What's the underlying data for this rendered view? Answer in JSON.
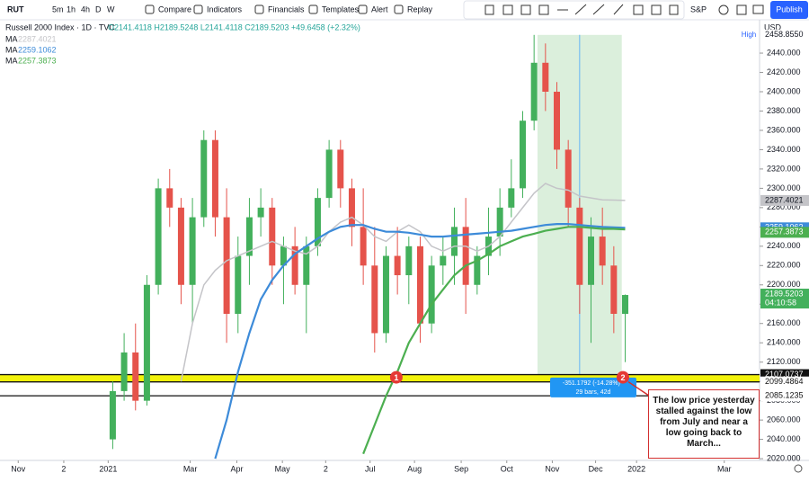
{
  "toolbar": {
    "symbol": "RUT",
    "intervals": [
      "5m",
      "1h",
      "4h",
      "D",
      "W"
    ],
    "buttons": [
      "Compare",
      "Indicators",
      "Financials",
      "Templates",
      "Alert",
      "Replay"
    ],
    "exchange": "S&P",
    "publish": "Publish"
  },
  "legend": {
    "title": "Russell 2000 Index · 1D · TVC",
    "ohlc": "O2141.4118 H2189.5248 L2141.4118 C2189.5203 +49.6458 (+2.32%)"
  },
  "chart_data": {
    "type": "candlestick",
    "currency": "USD",
    "up_color": "#43b05c",
    "down_color": "#e5534b",
    "open": [
      2040,
      2090,
      2130,
      2080,
      2200,
      2300,
      2280,
      2200,
      2270,
      2350,
      2270,
      2170,
      2230,
      2270,
      2280,
      2220,
      2240,
      2200,
      2240,
      2290,
      2340,
      2300,
      2260,
      2220,
      2150,
      2230,
      2210,
      2240,
      2160,
      2220,
      2230,
      2260,
      2200,
      2230,
      2250,
      2280,
      2300,
      2370,
      2430,
      2400,
      2340,
      2280,
      2200,
      2250,
      2220,
      2170
    ],
    "high": [
      2100,
      2150,
      2160,
      2210,
      2310,
      2320,
      2290,
      2290,
      2360,
      2360,
      2300,
      2250,
      2290,
      2300,
      2290,
      2250,
      2260,
      2250,
      2300,
      2350,
      2350,
      2310,
      2300,
      2260,
      2240,
      2260,
      2250,
      2250,
      2230,
      2250,
      2280,
      2290,
      2240,
      2280,
      2300,
      2330,
      2380,
      2458.855,
      2450,
      2410,
      2350,
      2290,
      2270,
      2280,
      2240,
      2190
    ],
    "low": [
      2030,
      2080,
      2070,
      2075,
      2190,
      2260,
      2180,
      2160,
      2260,
      2250,
      2140,
      2150,
      2200,
      2250,
      2200,
      2180,
      2190,
      2150,
      2230,
      2280,
      2280,
      2240,
      2200,
      2130,
      2140,
      2190,
      2180,
      2140,
      2150,
      2200,
      2200,
      2170,
      2190,
      2210,
      2230,
      2270,
      2290,
      2360,
      2380,
      2320,
      2260,
      2170,
      2140,
      2200,
      2150,
      2120
    ],
    "close": [
      2090,
      2130,
      2080,
      2200,
      2300,
      2280,
      2200,
      2270,
      2350,
      2270,
      2170,
      2230,
      2270,
      2280,
      2220,
      2240,
      2200,
      2240,
      2290,
      2340,
      2300,
      2260,
      2220,
      2150,
      2230,
      2210,
      2240,
      2160,
      2220,
      2230,
      2260,
      2200,
      2230,
      2250,
      2280,
      2300,
      2370,
      2430,
      2400,
      2340,
      2280,
      2200,
      2250,
      2220,
      2170,
      2189.5203
    ],
    "series": [
      {
        "name": "MA",
        "color": "#c4c4c8",
        "values": [
          null,
          null,
          null,
          null,
          null,
          null,
          2100,
          2160,
          2200,
          2215,
          2225,
          2230,
          2235,
          2240,
          2245,
          2240,
          2235,
          2232,
          2240,
          2255,
          2265,
          2270,
          2262,
          2250,
          2245,
          2255,
          2262,
          2255,
          2240,
          2235,
          2240,
          2240,
          2235,
          2240,
          2250,
          2265,
          2280,
          2295,
          2305,
          2300,
          2298,
          2292,
          2290,
          2288,
          2287.8,
          2287.4021
        ]
      },
      {
        "name": "MA",
        "color": "#3d8bd9",
        "values": [
          null,
          null,
          null,
          null,
          null,
          null,
          null,
          null,
          null,
          2020,
          2060,
          2110,
          2150,
          2185,
          2205,
          2220,
          2232,
          2240,
          2248,
          2255,
          2260,
          2262,
          2262,
          2258,
          2255,
          2255,
          2254,
          2252,
          2250,
          2250,
          2251,
          2252,
          2253,
          2254,
          2255,
          2256,
          2258,
          2260,
          2262,
          2263,
          2263,
          2262,
          2261,
          2260,
          2259.5,
          2259.1062
        ]
      },
      {
        "name": "MA",
        "color": "#4caf50",
        "values": [
          null,
          null,
          null,
          null,
          null,
          null,
          null,
          null,
          null,
          null,
          null,
          null,
          null,
          null,
          null,
          null,
          null,
          null,
          null,
          null,
          null,
          null,
          2025,
          2055,
          2085,
          2110,
          2140,
          2160,
          2180,
          2195,
          2210,
          2220,
          2225,
          2232,
          2240,
          2245,
          2250,
          2253,
          2256,
          2258,
          2260,
          2260,
          2259,
          2258,
          2258,
          2257.3873
        ]
      }
    ],
    "ylim": [
      2018.2,
      2474.5
    ],
    "yticks": [
      {
        "value": 2020,
        "label": "2020.000"
      },
      {
        "value": 2040,
        "label": "2040.000"
      },
      {
        "value": 2060,
        "label": "2060.000"
      },
      {
        "value": 2080,
        "label": "2080.000"
      },
      {
        "value": 2100,
        "label": "2100.000"
      },
      {
        "value": 2120,
        "label": "2120.000"
      },
      {
        "value": 2140,
        "label": "2140.000"
      },
      {
        "value": 2160,
        "label": "2160.000"
      },
      {
        "value": 2180,
        "label": "2180.000"
      },
      {
        "value": 2200,
        "label": "2200.000"
      },
      {
        "value": 2220,
        "label": "2220.000"
      },
      {
        "value": 2240,
        "label": "2240.000"
      },
      {
        "value": 2260,
        "label": "2260.000"
      },
      {
        "value": 2280,
        "label": "2280.000"
      },
      {
        "value": 2300,
        "label": "2300.000"
      },
      {
        "value": 2320,
        "label": "2320.000"
      },
      {
        "value": 2340,
        "label": "2340.000"
      },
      {
        "value": 2360,
        "label": "2360.000"
      },
      {
        "value": 2380,
        "label": "2380.000"
      },
      {
        "value": 2400,
        "label": "2400.000"
      },
      {
        "value": 2420,
        "label": "2420.000"
      },
      {
        "value": 2440,
        "label": "2440.000"
      }
    ],
    "xlim": [
      -9.9,
      56.8
    ],
    "xticks": [
      {
        "value": -8.3,
        "label": "Nov"
      },
      {
        "value": -4.3,
        "label": "2"
      },
      {
        "value": -0.4,
        "label": "2021"
      },
      {
        "value": 6.8,
        "label": "Mar"
      },
      {
        "value": 10.9,
        "label": "Apr"
      },
      {
        "value": 14.9,
        "label": "May"
      },
      {
        "value": 18.7,
        "label": "2"
      },
      {
        "value": 22.6,
        "label": "Jul"
      },
      {
        "value": 26.5,
        "label": "Aug"
      },
      {
        "value": 30.6,
        "label": "Sep"
      },
      {
        "value": 34.6,
        "label": "Oct"
      },
      {
        "value": 38.6,
        "label": "Nov"
      },
      {
        "value": 42.4,
        "label": "Dec"
      },
      {
        "value": 46.0,
        "label": "2022"
      },
      {
        "value": 53.7,
        "label": "Mar"
      }
    ],
    "grid": false,
    "high_marker": {
      "label": "High",
      "value": 2458.855,
      "value_label": "2458.8550"
    },
    "countdown": "04:10:58",
    "levels": [
      2107.0737,
      2099.4864,
      2085.1235
    ],
    "zone_color": "#f2f20a",
    "measure": {
      "x": [
        37.3,
        44.7
      ],
      "from": 2458.855,
      "to": 2107.6758,
      "label": "-351.1792 (-14.28%) -",
      "bars": "29 bars, 42d"
    },
    "markers": [
      {
        "label": "1",
        "x": 24.9
      },
      {
        "label": "2",
        "x": 44.8
      }
    ],
    "annotation": "The low price yesterday stalled against the low from July and near a low going back to March..."
  }
}
